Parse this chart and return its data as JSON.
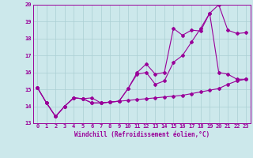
{
  "background_color": "#cce8eb",
  "grid_color": "#aacfd4",
  "line_color": "#990099",
  "xlim": [
    -0.5,
    23.5
  ],
  "ylim": [
    13,
    20
  ],
  "yticks": [
    13,
    14,
    15,
    16,
    17,
    18,
    19,
    20
  ],
  "xticks": [
    0,
    1,
    2,
    3,
    4,
    5,
    6,
    7,
    8,
    9,
    10,
    11,
    12,
    13,
    14,
    15,
    16,
    17,
    18,
    19,
    20,
    21,
    22,
    23
  ],
  "xlabel": "Windchill (Refroidissement éolien,°C)",
  "series1_x": [
    0,
    1,
    2,
    3,
    4,
    5,
    6,
    7,
    8,
    9,
    10,
    11,
    12,
    13,
    14,
    15,
    16,
    17,
    18,
    19,
    20,
    21,
    22,
    23
  ],
  "series1_y": [
    15.1,
    14.2,
    13.4,
    14.0,
    14.5,
    14.45,
    14.2,
    14.2,
    14.25,
    14.3,
    14.35,
    14.4,
    14.45,
    14.5,
    14.55,
    14.6,
    14.65,
    14.75,
    14.85,
    14.95,
    15.05,
    15.3,
    15.5,
    15.6
  ],
  "series2_x": [
    0,
    1,
    2,
    3,
    4,
    5,
    6,
    7,
    8,
    9,
    10,
    11,
    12,
    13,
    14,
    15,
    16,
    17,
    18,
    19,
    20,
    21,
    22,
    23
  ],
  "series2_y": [
    15.1,
    14.2,
    13.4,
    14.0,
    14.5,
    14.45,
    14.2,
    14.2,
    14.25,
    14.3,
    15.05,
    15.9,
    16.0,
    15.3,
    15.5,
    16.6,
    17.0,
    17.8,
    18.6,
    19.5,
    20.0,
    18.5,
    18.3,
    18.35
  ],
  "series3_x": [
    0,
    1,
    2,
    3,
    4,
    5,
    6,
    7,
    8,
    9,
    10,
    11,
    12,
    13,
    14,
    15,
    16,
    17,
    18,
    19,
    20,
    21,
    22,
    23
  ],
  "series3_y": [
    15.1,
    14.2,
    13.4,
    14.0,
    14.5,
    14.45,
    14.5,
    14.2,
    14.25,
    14.3,
    15.05,
    16.0,
    16.5,
    15.9,
    16.0,
    18.6,
    18.2,
    18.5,
    18.45,
    19.5,
    16.0,
    15.9,
    15.6,
    15.6
  ],
  "marker": "D",
  "markersize": 2.0,
  "linewidth": 0.8
}
